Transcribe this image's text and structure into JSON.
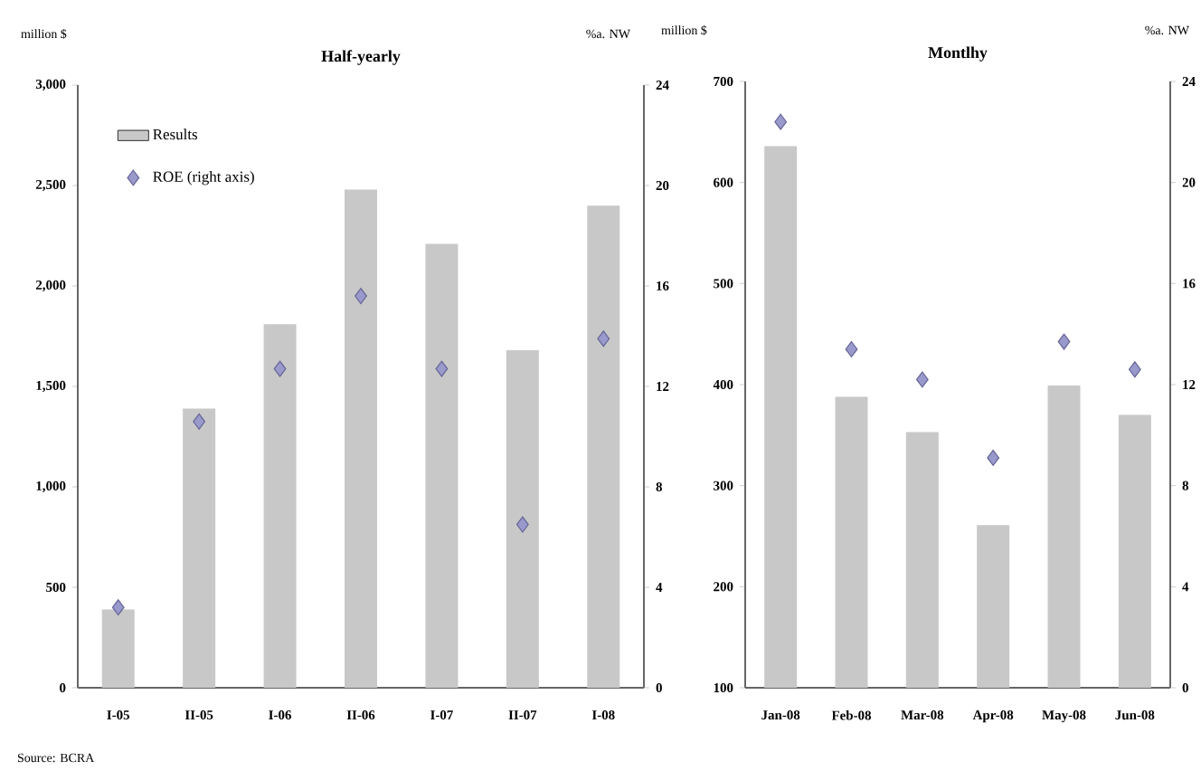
{
  "chart_data": [
    {
      "type": "bar",
      "title": "Half-yearly",
      "ylabel": "million $",
      "y2label": "%a. NW",
      "categories": [
        "I-05",
        "II-05",
        "I-06",
        "II-06",
        "I-07",
        "II-07",
        "I-08"
      ],
      "series": [
        {
          "name": "Results",
          "color": "#c8c8c8",
          "values": [
            390,
            1390,
            1810,
            2480,
            2210,
            1680,
            2400
          ]
        },
        {
          "name": "ROE (right axis)",
          "type": "scatter",
          "axis": "y2",
          "marker": "diamond",
          "color": "#9999cc",
          "values": [
            3.2,
            10.6,
            12.7,
            15.6,
            12.7,
            6.5,
            13.9
          ]
        }
      ],
      "ylim": [
        0,
        3000
      ],
      "yticks": [
        0,
        500,
        {
          "value": 1000,
          "label": "1,000"
        },
        {
          "value": 1500,
          "label": "1,500"
        },
        {
          "value": 2000,
          "label": "2,000"
        },
        {
          "value": 2500,
          "label": "2,500"
        },
        {
          "value": 3000,
          "label": "3,000"
        }
      ],
      "y2lim": [
        0,
        24
      ],
      "y2ticks": [
        0,
        4,
        8,
        12,
        16,
        20,
        24
      ],
      "legend": "top left",
      "grid": false,
      "annotations": [
        "Source: BCRA"
      ]
    },
    {
      "type": "bar",
      "title": "Montlhy",
      "ylabel": "million $",
      "y2label": "%a. NW",
      "categories": [
        "Jan-08",
        "Feb-08",
        "Mar-08",
        "Apr-08",
        "May-08",
        "Jun-08"
      ],
      "series": [
        {
          "color": "#c8c8c8",
          "values": [
            636,
            388,
            353,
            261,
            399,
            370
          ]
        },
        {
          "type": "scatter",
          "axis": "y2",
          "marker": "diamond",
          "color": "#9999cc",
          "values": [
            22.4,
            13.4,
            12.2,
            9.1,
            13.7,
            12.6
          ]
        }
      ],
      "ylim": [
        100,
        700
      ],
      "yticks": [
        100,
        200,
        300,
        400,
        500,
        600,
        700
      ],
      "y2lim": [
        0,
        24
      ],
      "y2ticks": [
        0,
        4,
        8,
        12,
        16,
        20,
        24
      ],
      "grid": false
    }
  ]
}
